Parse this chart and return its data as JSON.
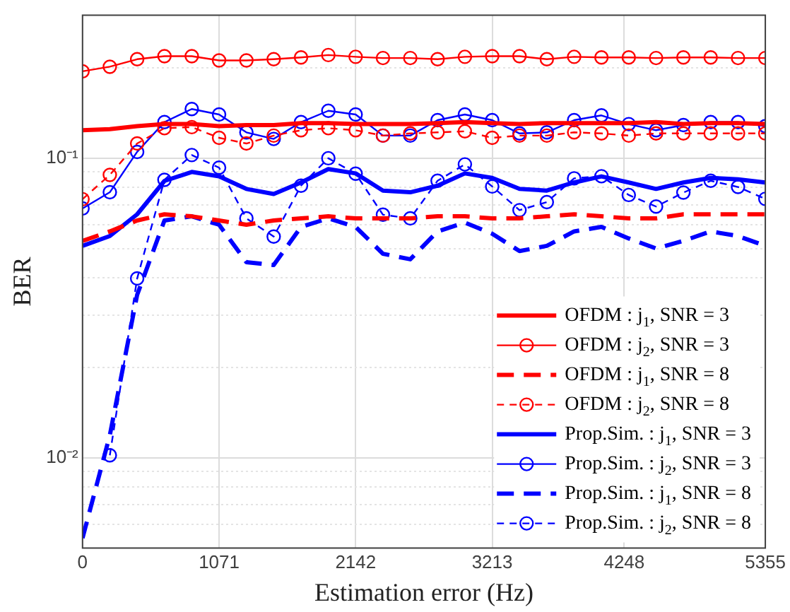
{
  "chart_data": {
    "type": "line",
    "xlabel": "Estimation error (Hz)",
    "ylabel": "BER",
    "log": "y",
    "grid": true,
    "legend": "bottom right",
    "x": [
      0,
      214.2,
      428.4,
      642.6,
      856.8,
      1071,
      1285.2,
      1499.4,
      1713.6,
      1927.8,
      2142,
      2356.2,
      2570.4,
      2784.6,
      2998.8,
      3213,
      3427.2,
      3641.4,
      3855.6,
      4069.8,
      4284,
      4498.2,
      4712.4,
      4926.6,
      5140.8,
      5355
    ],
    "xlim": [
      0,
      5355
    ],
    "xticks": [
      0,
      1071,
      2142,
      3213,
      4248,
      5355
    ],
    "ylim": [
      0.005,
      0.3
    ],
    "yticks": [
      {
        "value": 0.006,
        "label": null
      },
      {
        "value": 0.007,
        "label": null
      },
      {
        "value": 0.008,
        "label": null
      },
      {
        "value": 0.009,
        "label": null
      },
      {
        "value": 0.01,
        "label": "10⁻²"
      },
      {
        "value": 0.02,
        "label": null
      },
      {
        "value": 0.03,
        "label": null
      },
      {
        "value": 0.04,
        "label": null
      },
      {
        "value": 0.05,
        "label": null
      },
      {
        "value": 0.06,
        "label": null
      },
      {
        "value": 0.07,
        "label": null
      },
      {
        "value": 0.08,
        "label": null
      },
      {
        "value": 0.09,
        "label": null
      },
      {
        "value": 0.1,
        "label": "10⁻¹"
      },
      {
        "value": 0.2,
        "label": null
      }
    ],
    "series": [
      {
        "name": "OFDM : j$_{1}$, SNR = 3",
        "color": "#ff0000",
        "line_style": "solid",
        "marker": "none",
        "values": [
          0.124,
          0.125,
          0.128,
          0.13,
          0.13,
          0.128,
          0.129,
          0.129,
          0.131,
          0.131,
          0.13,
          0.13,
          0.13,
          0.131,
          0.132,
          0.131,
          0.13,
          0.131,
          0.131,
          0.131,
          0.131,
          0.132,
          0.13,
          0.131,
          0.131,
          0.13
        ]
      },
      {
        "name": "OFDM : j$_{2}$, SNR = 3",
        "color": "#ff0000",
        "line_style": "solid",
        "marker": "circle",
        "values": [
          0.195,
          0.202,
          0.214,
          0.219,
          0.219,
          0.212,
          0.212,
          0.214,
          0.217,
          0.221,
          0.218,
          0.216,
          0.216,
          0.214,
          0.218,
          0.219,
          0.219,
          0.214,
          0.218,
          0.217,
          0.217,
          0.216,
          0.217,
          0.217,
          0.216,
          0.216
        ]
      },
      {
        "name": "OFDM : j$_{1}$, SNR = 8",
        "color": "#ff0000",
        "line_style": "dashed",
        "marker": "none",
        "values": [
          0.053,
          0.057,
          0.062,
          0.065,
          0.064,
          0.062,
          0.06,
          0.062,
          0.063,
          0.064,
          0.063,
          0.063,
          0.063,
          0.064,
          0.064,
          0.063,
          0.063,
          0.064,
          0.065,
          0.064,
          0.063,
          0.063,
          0.065,
          0.065,
          0.065,
          0.065
        ]
      },
      {
        "name": "OFDM : j$_{2}$, SNR = 8",
        "color": "#ff0000",
        "line_style": "dashed",
        "marker": "circle",
        "values": [
          0.073,
          0.088,
          0.112,
          0.126,
          0.127,
          0.117,
          0.112,
          0.119,
          0.124,
          0.126,
          0.124,
          0.119,
          0.121,
          0.122,
          0.123,
          0.117,
          0.119,
          0.119,
          0.122,
          0.121,
          0.119,
          0.121,
          0.121,
          0.121,
          0.121,
          0.121
        ]
      },
      {
        "name": "Prop.Sim. : j$_{1}$, SNR = 3",
        "color": "#0000ff",
        "line_style": "solid",
        "marker": "none",
        "values": [
          0.051,
          0.055,
          0.065,
          0.084,
          0.09,
          0.087,
          0.079,
          0.076,
          0.083,
          0.092,
          0.089,
          0.078,
          0.077,
          0.081,
          0.089,
          0.086,
          0.079,
          0.078,
          0.083,
          0.087,
          0.083,
          0.079,
          0.083,
          0.086,
          0.085,
          0.083
        ]
      },
      {
        "name": "Prop.Sim. : j$_{2}$, SNR = 3",
        "color": "#0000ff",
        "line_style": "solid",
        "marker": "circle",
        "values": [
          0.068,
          0.077,
          0.105,
          0.132,
          0.146,
          0.14,
          0.122,
          0.116,
          0.132,
          0.144,
          0.14,
          0.119,
          0.119,
          0.134,
          0.14,
          0.134,
          0.121,
          0.122,
          0.134,
          0.139,
          0.13,
          0.124,
          0.129,
          0.132,
          0.132,
          0.128
        ]
      },
      {
        "name": "Prop.Sim. : j$_{1}$, SNR = 8",
        "color": "#0000ff",
        "line_style": "dashed",
        "marker": "none",
        "values": [
          0.0054,
          0.0119,
          0.035,
          0.062,
          0.064,
          0.06,
          0.045,
          0.044,
          0.059,
          0.063,
          0.059,
          0.048,
          0.046,
          0.057,
          0.061,
          0.056,
          0.049,
          0.051,
          0.057,
          0.059,
          0.054,
          0.05,
          0.053,
          0.057,
          0.055,
          0.051
        ]
      },
      {
        "name": "Prop.Sim. : j$_{2}$, SNR = 8",
        "color": "#0000ff",
        "line_style": "dashed",
        "marker": "circle",
        "values": [
          null,
          0.0102,
          0.0397,
          0.0847,
          0.1025,
          0.093,
          0.063,
          0.0548,
          0.081,
          0.1,
          0.0888,
          0.0648,
          0.063,
          0.0841,
          0.0954,
          0.0805,
          0.0671,
          0.0714,
          0.0857,
          0.0871,
          0.0754,
          0.069,
          0.0768,
          0.0841,
          0.0802,
          0.0732
        ]
      }
    ]
  }
}
